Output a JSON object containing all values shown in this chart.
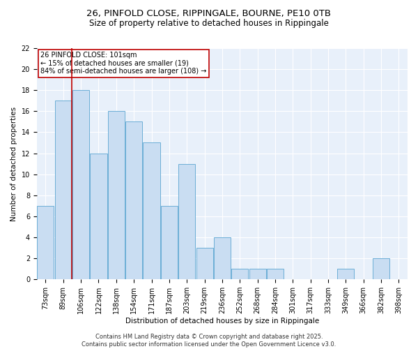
{
  "title1": "26, PINFOLD CLOSE, RIPPINGALE, BOURNE, PE10 0TB",
  "title2": "Size of property relative to detached houses in Rippingale",
  "xlabel": "Distribution of detached houses by size in Rippingale",
  "ylabel": "Number of detached properties",
  "categories": [
    "73sqm",
    "89sqm",
    "106sqm",
    "122sqm",
    "138sqm",
    "154sqm",
    "171sqm",
    "187sqm",
    "203sqm",
    "219sqm",
    "236sqm",
    "252sqm",
    "268sqm",
    "284sqm",
    "301sqm",
    "317sqm",
    "333sqm",
    "349sqm",
    "366sqm",
    "382sqm",
    "398sqm"
  ],
  "values": [
    7,
    17,
    18,
    12,
    16,
    15,
    13,
    7,
    11,
    3,
    4,
    1,
    1,
    1,
    0,
    0,
    0,
    1,
    0,
    2,
    0
  ],
  "bar_color": "#c9ddf2",
  "bar_edge_color": "#6baed6",
  "vline_x": 1.5,
  "vline_color": "#c00000",
  "annotation_text": "26 PINFOLD CLOSE: 101sqm\n← 15% of detached houses are smaller (19)\n84% of semi-detached houses are larger (108) →",
  "annotation_box_color": "#c00000",
  "ylim": [
    0,
    22
  ],
  "yticks": [
    0,
    2,
    4,
    6,
    8,
    10,
    12,
    14,
    16,
    18,
    20,
    22
  ],
  "background_color": "#e8f0fa",
  "grid_color": "#ffffff",
  "footer": "Contains HM Land Registry data © Crown copyright and database right 2025.\nContains public sector information licensed under the Open Government Licence v3.0.",
  "title_fontsize": 9.5,
  "subtitle_fontsize": 8.5,
  "axis_label_fontsize": 7.5,
  "tick_fontsize": 7,
  "footer_fontsize": 6,
  "annotation_fontsize": 7
}
